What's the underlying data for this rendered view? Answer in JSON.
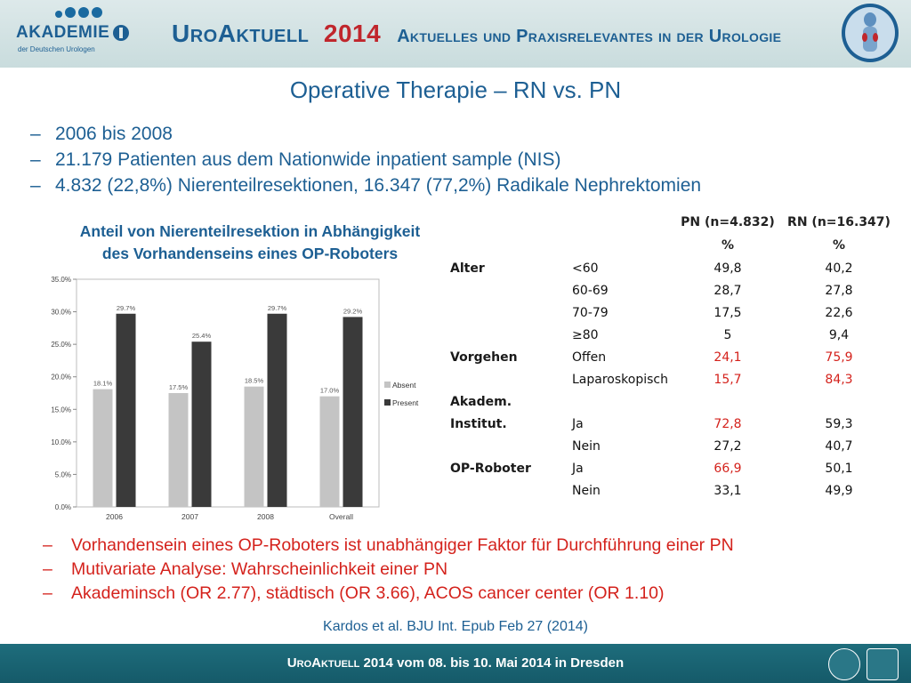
{
  "header": {
    "logo_name": "AKADEMIE",
    "logo_subtitle": "der Deutschen Urologen",
    "brand": "UroAktuell",
    "brand_year": "2014",
    "tagline": "Aktuelles und Praxisrelevantes in der Urologie"
  },
  "title": "Operative Therapie – RN vs. PN",
  "bullets": [
    "2006 bis 2008",
    "21.179 Patienten aus dem Nationwide inpatient sample (NIS)",
    "4.832 (22,8%) Nierenteilresektionen, 16.347 (77,2%) Radikale Nephrektomien"
  ],
  "chart_title_line1": "Anteil von Nierenteilresektion in Abhängigkeit",
  "chart_title_line2": "des Vorhandenseins eines OP-Roboters",
  "chart_data": {
    "type": "bar",
    "categories": [
      "2006",
      "2007",
      "2008",
      "Overall"
    ],
    "series": [
      {
        "name": "Absent",
        "values": [
          18.1,
          17.5,
          18.5,
          17.0
        ],
        "labels": [
          "18.1%",
          "17.5%",
          "18.5%",
          "17.0%"
        ],
        "color": "#c4c4c4"
      },
      {
        "name": "Present",
        "values": [
          29.7,
          25.4,
          29.7,
          29.2
        ],
        "labels": [
          "29.7%",
          "25.4%",
          "29.7%",
          "29.2%"
        ],
        "color": "#3a3a3a"
      }
    ],
    "yticks": [
      "0.0%",
      "5.0%",
      "10.0%",
      "15.0%",
      "20.0%",
      "25.0%",
      "30.0%",
      "35.0%"
    ],
    "ylim": [
      0,
      35
    ],
    "legend_position": "right",
    "grid": false
  },
  "table": {
    "col1_header": "PN (n=4.832)",
    "col1_unit": "%",
    "col2_header": "RN (n=16.347)",
    "col2_unit": "%",
    "rows": [
      {
        "cat": "Alter",
        "sub": "<60",
        "pn": "49,8",
        "rn": "40,2",
        "pn_red": false,
        "rn_red": false
      },
      {
        "cat": "",
        "sub": "60-69",
        "pn": "28,7",
        "rn": "27,8",
        "pn_red": false,
        "rn_red": false
      },
      {
        "cat": "",
        "sub": "70-79",
        "pn": "17,5",
        "rn": "22,6",
        "pn_red": false,
        "rn_red": false
      },
      {
        "cat": "",
        "sub": "≥80",
        "pn": "5",
        "rn": "9,4",
        "pn_red": false,
        "rn_red": false
      },
      {
        "cat": "Vorgehen",
        "sub": "Offen",
        "pn": "24,1",
        "rn": "75,9",
        "pn_red": true,
        "rn_red": true
      },
      {
        "cat": "",
        "sub": "Laparoskopisch",
        "pn": "15,7",
        "rn": "84,3",
        "pn_red": true,
        "rn_red": true
      },
      {
        "cat": "Akadem.",
        "sub": "",
        "pn": "",
        "rn": "",
        "pn_red": false,
        "rn_red": false
      },
      {
        "cat": "Institut.",
        "sub": "Ja",
        "pn": "72,8",
        "rn": "59,3",
        "pn_red": true,
        "rn_red": false
      },
      {
        "cat": "",
        "sub": "Nein",
        "pn": "27,2",
        "rn": "40,7",
        "pn_red": false,
        "rn_red": false
      },
      {
        "cat": "OP-Roboter",
        "sub": "Ja",
        "pn": "66,9",
        "rn": "50,1",
        "pn_red": true,
        "rn_red": false
      },
      {
        "cat": "",
        "sub": "Nein",
        "pn": "33,1",
        "rn": "49,9",
        "pn_red": false,
        "rn_red": false
      }
    ]
  },
  "findings": [
    "Vorhandensein eines OP-Roboters ist unabhängiger Faktor für Durchführung einer PN",
    "Mutivariate Analyse: Wahrscheinlichkeit einer PN",
    "Akademinsch (OR 2.77), städtisch (OR 3.66), ACOS cancer center (OR 1.10)"
  ],
  "citation": "Kardos et al.   BJU Int.   Epub Feb 27 (2014)",
  "footer": {
    "brand": "UroAktuell",
    "text": " 2014  vom 08. bis 10. Mai 2014  in Dresden"
  },
  "colors": {
    "accent": "#1d5f93",
    "highlight": "#d4221c",
    "footer": "#1e6d7c"
  }
}
